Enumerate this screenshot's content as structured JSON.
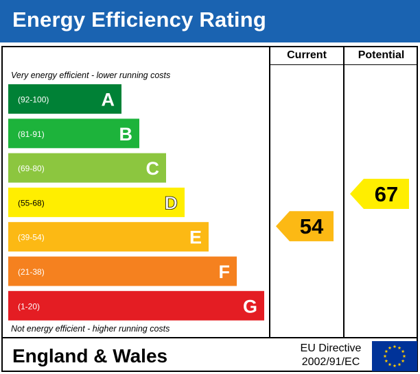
{
  "header": {
    "title": "Energy Efficiency Rating"
  },
  "columns": {
    "current": "Current",
    "potential": "Potential"
  },
  "notes": {
    "top": "Very energy efficient - lower running costs",
    "bottom": "Not energy efficient - higher running costs"
  },
  "footer": {
    "region": "England & Wales",
    "directive_line1": "EU Directive",
    "directive_line2": "2002/91/EC",
    "flag_icon": "eu-flag-icon"
  },
  "colors": {
    "header": "#1a63b1",
    "A": "#008136",
    "B": "#1db33b",
    "C": "#8cc63f",
    "D": "#ffee00",
    "E": "#fcb914",
    "F": "#f5811f",
    "G": "#e41d23",
    "pointer": "#fcb914",
    "pointer_potential": "#ffee00",
    "eu_flag": "#003399",
    "eu_star": "#ffcc00"
  },
  "chart_data": {
    "type": "bar",
    "bands": [
      {
        "letter": "A",
        "range": "(92-100)",
        "min": 92,
        "max": 100
      },
      {
        "letter": "B",
        "range": "(81-91)",
        "min": 81,
        "max": 91
      },
      {
        "letter": "C",
        "range": "(69-80)",
        "min": 69,
        "max": 80
      },
      {
        "letter": "D",
        "range": "(55-68)",
        "min": 55,
        "max": 68
      },
      {
        "letter": "E",
        "range": "(39-54)",
        "min": 39,
        "max": 54
      },
      {
        "letter": "F",
        "range": "(21-38)",
        "min": 21,
        "max": 38
      },
      {
        "letter": "G",
        "range": "(1-20)",
        "min": 1,
        "max": 20
      }
    ],
    "current": 54,
    "potential": 67
  }
}
